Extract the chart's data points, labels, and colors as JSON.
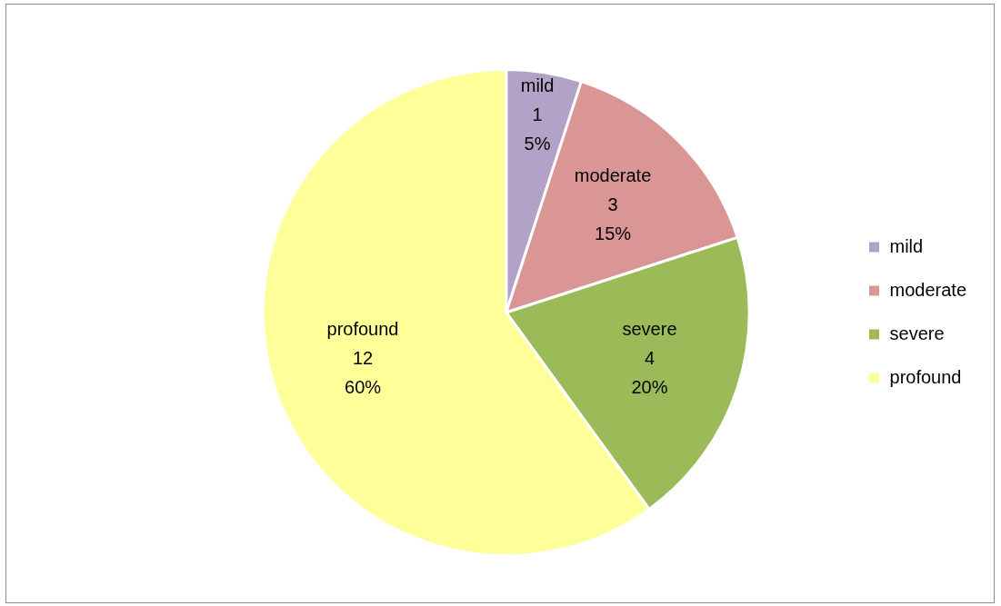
{
  "chart_data": {
    "type": "pie",
    "categories": [
      "mild",
      "moderate",
      "severe",
      "profound"
    ],
    "values": [
      1,
      3,
      4,
      12
    ],
    "colors": [
      "#b3a2c7",
      "#d99694",
      "#9bbb59",
      "#ffff99"
    ],
    "value_labels": [
      "1\n5%",
      "3\n15%",
      "4\n20%",
      "12\n60%"
    ],
    "legend": "right"
  }
}
